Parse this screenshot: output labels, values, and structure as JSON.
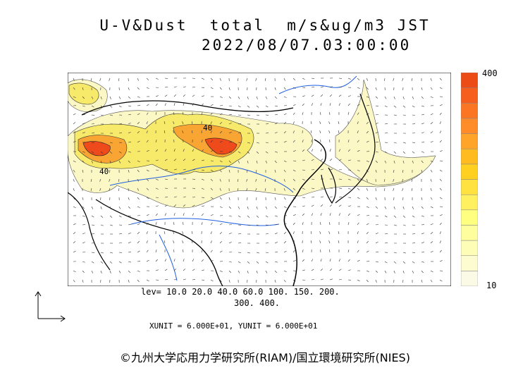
{
  "header": {
    "title_line1": "U-V&Dust  total  m/s&ug/m3 JST",
    "title_line2": "2022/08/07.03:00:00"
  },
  "colorbar": {
    "max_label": "400",
    "min_label": "10",
    "colors": [
      "#fafae6",
      "#fcfcd0",
      "#fdfdb8",
      "#fefe9e",
      "#ffff80",
      "#fff060",
      "#ffe240",
      "#ffd020",
      "#ffbb20",
      "#ffa428",
      "#ff8c28",
      "#fb7522",
      "#f55e1c",
      "#ec4a16"
    ]
  },
  "legend": {
    "levels_line1": "lev= 10.0 20.0 40.0 60.0 100. 150. 200.",
    "levels_line2": "300. 400."
  },
  "footer": {
    "units": "XUNIT = 6.000E+01, YUNIT = 6.000E+01",
    "credit": "©九州大学応用力学研究所(RIAM)/国立環境研究所(NIES)"
  },
  "map": {
    "contour_labels": [
      "40",
      "40"
    ],
    "colors": {
      "land_border": "#000000",
      "coast": "#000000",
      "rivers": "#1f5fe0",
      "dust_light": "#fbf8c6",
      "dust_yellow": "#f7e96a",
      "dust_orange": "#f9a533",
      "dust_red": "#ee4a1c"
    }
  }
}
